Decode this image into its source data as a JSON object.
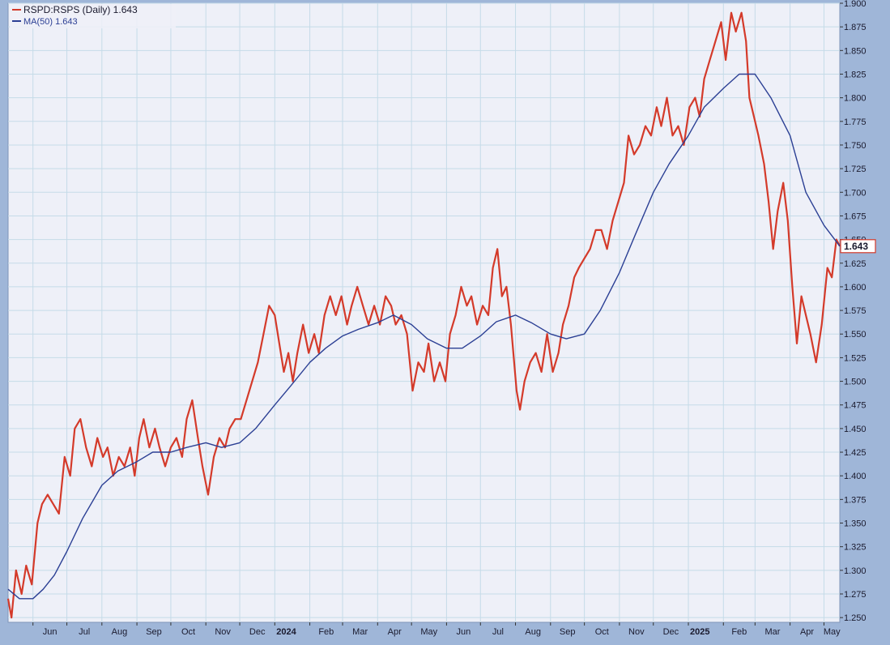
{
  "legend": {
    "main_label": "RSPD:RSPS (Daily) 1.643",
    "ma_label": "MA(50) 1.643"
  },
  "last_value_tag": "1.643",
  "colors": {
    "price_line": "#d43a2a",
    "ma_line": "#2b3f94",
    "plot_background": "#eef0f8",
    "grid": "#c5dbe8",
    "frame": "#9fb6d8",
    "axis_text": "#1a1a2e"
  },
  "chart_data": {
    "type": "line",
    "title": "",
    "xlabel": "",
    "ylabel": "",
    "ylim": [
      1.245,
      1.9
    ],
    "grid": true,
    "legend_position": "top-left",
    "y_axis_side": "right",
    "y_ticks": [
      "1.250",
      "1.275",
      "1.300",
      "1.325",
      "1.350",
      "1.375",
      "1.400",
      "1.425",
      "1.450",
      "1.475",
      "1.500",
      "1.525",
      "1.550",
      "1.575",
      "1.600",
      "1.625",
      "1.650",
      "1.675",
      "1.700",
      "1.725",
      "1.750",
      "1.775",
      "1.800",
      "1.825",
      "1.850",
      "1.875",
      "1.900"
    ],
    "x_tick_labels": [
      "Jun",
      "Jul",
      "Aug",
      "Sep",
      "Oct",
      "Nov",
      "Dec",
      "2024",
      "Feb",
      "Mar",
      "Apr",
      "May",
      "Jun",
      "Jul",
      "Aug",
      "Sep",
      "Oct",
      "Nov",
      "Dec",
      "2025",
      "Feb",
      "Mar",
      "Apr",
      "May"
    ],
    "x_tick_dates": [
      "2023-06-01",
      "2023-07-01",
      "2023-08-01",
      "2023-09-01",
      "2023-10-01",
      "2023-11-01",
      "2023-12-01",
      "2024-01-01",
      "2024-02-01",
      "2024-03-01",
      "2024-04-01",
      "2024-05-01",
      "2024-06-01",
      "2024-07-01",
      "2024-08-01",
      "2024-09-01",
      "2024-10-01",
      "2024-11-01",
      "2024-12-01",
      "2025-01-01",
      "2025-02-01",
      "2025-03-01",
      "2025-04-01",
      "2025-05-01"
    ],
    "bold_tick_labels": [
      "2024",
      "2025"
    ],
    "x_range": [
      "2023-05-10",
      "2025-05-15"
    ],
    "series": [
      {
        "name": "RSPD:RSPS (Daily)",
        "key": "price",
        "points": [
          [
            "2023-05-10",
            1.27
          ],
          [
            "2023-05-13",
            1.25
          ],
          [
            "2023-05-17",
            1.3
          ],
          [
            "2023-05-22",
            1.275
          ],
          [
            "2023-05-26",
            1.305
          ],
          [
            "2023-05-31",
            1.285
          ],
          [
            "2023-06-05",
            1.35
          ],
          [
            "2023-06-09",
            1.37
          ],
          [
            "2023-06-14",
            1.38
          ],
          [
            "2023-06-19",
            1.37
          ],
          [
            "2023-06-24",
            1.36
          ],
          [
            "2023-06-29",
            1.42
          ],
          [
            "2023-07-04",
            1.4
          ],
          [
            "2023-07-08",
            1.45
          ],
          [
            "2023-07-13",
            1.46
          ],
          [
            "2023-07-18",
            1.43
          ],
          [
            "2023-07-23",
            1.41
          ],
          [
            "2023-07-28",
            1.44
          ],
          [
            "2023-08-02",
            1.42
          ],
          [
            "2023-08-06",
            1.43
          ],
          [
            "2023-08-11",
            1.4
          ],
          [
            "2023-08-16",
            1.42
          ],
          [
            "2023-08-21",
            1.41
          ],
          [
            "2023-08-26",
            1.43
          ],
          [
            "2023-08-30",
            1.4
          ],
          [
            "2023-09-03",
            1.44
          ],
          [
            "2023-09-07",
            1.46
          ],
          [
            "2023-09-12",
            1.43
          ],
          [
            "2023-09-17",
            1.45
          ],
          [
            "2023-09-21",
            1.43
          ],
          [
            "2023-09-26",
            1.41
          ],
          [
            "2023-10-01",
            1.43
          ],
          [
            "2023-10-06",
            1.44
          ],
          [
            "2023-10-11",
            1.42
          ],
          [
            "2023-10-15",
            1.46
          ],
          [
            "2023-10-20",
            1.48
          ],
          [
            "2023-10-25",
            1.44
          ],
          [
            "2023-10-29",
            1.41
          ],
          [
            "2023-11-03",
            1.38
          ],
          [
            "2023-11-08",
            1.42
          ],
          [
            "2023-11-13",
            1.44
          ],
          [
            "2023-11-18",
            1.43
          ],
          [
            "2023-11-22",
            1.45
          ],
          [
            "2023-11-27",
            1.46
          ],
          [
            "2023-12-02",
            1.46
          ],
          [
            "2023-12-07",
            1.48
          ],
          [
            "2023-12-12",
            1.5
          ],
          [
            "2023-12-17",
            1.52
          ],
          [
            "2023-12-22",
            1.55
          ],
          [
            "2023-12-27",
            1.58
          ],
          [
            "2024-01-01",
            1.57
          ],
          [
            "2024-01-05",
            1.54
          ],
          [
            "2024-01-09",
            1.51
          ],
          [
            "2024-01-13",
            1.53
          ],
          [
            "2024-01-17",
            1.5
          ],
          [
            "2024-01-21",
            1.53
          ],
          [
            "2024-01-26",
            1.56
          ],
          [
            "2024-01-31",
            1.53
          ],
          [
            "2024-02-05",
            1.55
          ],
          [
            "2024-02-09",
            1.53
          ],
          [
            "2024-02-14",
            1.57
          ],
          [
            "2024-02-19",
            1.59
          ],
          [
            "2024-02-24",
            1.57
          ],
          [
            "2024-02-29",
            1.59
          ],
          [
            "2024-03-05",
            1.56
          ],
          [
            "2024-03-09",
            1.58
          ],
          [
            "2024-03-14",
            1.6
          ],
          [
            "2024-03-19",
            1.58
          ],
          [
            "2024-03-24",
            1.56
          ],
          [
            "2024-03-29",
            1.58
          ],
          [
            "2024-04-03",
            1.56
          ],
          [
            "2024-04-08",
            1.59
          ],
          [
            "2024-04-13",
            1.58
          ],
          [
            "2024-04-17",
            1.56
          ],
          [
            "2024-04-22",
            1.57
          ],
          [
            "2024-04-27",
            1.55
          ],
          [
            "2024-05-02",
            1.49
          ],
          [
            "2024-05-07",
            1.52
          ],
          [
            "2024-05-12",
            1.51
          ],
          [
            "2024-05-16",
            1.54
          ],
          [
            "2024-05-21",
            1.5
          ],
          [
            "2024-05-26",
            1.52
          ],
          [
            "2024-05-31",
            1.5
          ],
          [
            "2024-06-04",
            1.55
          ],
          [
            "2024-06-09",
            1.57
          ],
          [
            "2024-06-14",
            1.6
          ],
          [
            "2024-06-19",
            1.58
          ],
          [
            "2024-06-23",
            1.59
          ],
          [
            "2024-06-28",
            1.56
          ],
          [
            "2024-07-03",
            1.58
          ],
          [
            "2024-07-08",
            1.57
          ],
          [
            "2024-07-12",
            1.62
          ],
          [
            "2024-07-16",
            1.64
          ],
          [
            "2024-07-20",
            1.59
          ],
          [
            "2024-07-24",
            1.6
          ],
          [
            "2024-07-28",
            1.56
          ],
          [
            "2024-08-02",
            1.49
          ],
          [
            "2024-08-05",
            1.47
          ],
          [
            "2024-08-09",
            1.5
          ],
          [
            "2024-08-14",
            1.52
          ],
          [
            "2024-08-19",
            1.53
          ],
          [
            "2024-08-24",
            1.51
          ],
          [
            "2024-08-29",
            1.55
          ],
          [
            "2024-09-03",
            1.51
          ],
          [
            "2024-09-08",
            1.53
          ],
          [
            "2024-09-12",
            1.56
          ],
          [
            "2024-09-17",
            1.58
          ],
          [
            "2024-09-22",
            1.61
          ],
          [
            "2024-09-26",
            1.62
          ],
          [
            "2024-10-01",
            1.63
          ],
          [
            "2024-10-06",
            1.64
          ],
          [
            "2024-10-11",
            1.66
          ],
          [
            "2024-10-16",
            1.66
          ],
          [
            "2024-10-21",
            1.64
          ],
          [
            "2024-10-26",
            1.67
          ],
          [
            "2024-10-31",
            1.69
          ],
          [
            "2024-11-05",
            1.71
          ],
          [
            "2024-11-09",
            1.76
          ],
          [
            "2024-11-14",
            1.74
          ],
          [
            "2024-11-19",
            1.75
          ],
          [
            "2024-11-24",
            1.77
          ],
          [
            "2024-11-29",
            1.76
          ],
          [
            "2024-12-04",
            1.79
          ],
          [
            "2024-12-08",
            1.77
          ],
          [
            "2024-12-13",
            1.8
          ],
          [
            "2024-12-18",
            1.76
          ],
          [
            "2024-12-23",
            1.77
          ],
          [
            "2024-12-28",
            1.75
          ],
          [
            "2025-01-02",
            1.79
          ],
          [
            "2025-01-07",
            1.8
          ],
          [
            "2025-01-11",
            1.78
          ],
          [
            "2025-01-15",
            1.82
          ],
          [
            "2025-01-20",
            1.84
          ],
          [
            "2025-01-25",
            1.86
          ],
          [
            "2025-01-30",
            1.88
          ],
          [
            "2025-02-03",
            1.84
          ],
          [
            "2025-02-08",
            1.89
          ],
          [
            "2025-02-12",
            1.87
          ],
          [
            "2025-02-17",
            1.89
          ],
          [
            "2025-02-21",
            1.86
          ],
          [
            "2025-02-24",
            1.8
          ],
          [
            "2025-02-28",
            1.78
          ],
          [
            "2025-03-04",
            1.76
          ],
          [
            "2025-03-09",
            1.73
          ],
          [
            "2025-03-13",
            1.69
          ],
          [
            "2025-03-17",
            1.64
          ],
          [
            "2025-03-21",
            1.68
          ],
          [
            "2025-03-26",
            1.71
          ],
          [
            "2025-03-30",
            1.67
          ],
          [
            "2025-04-03",
            1.6
          ],
          [
            "2025-04-07",
            1.54
          ],
          [
            "2025-04-11",
            1.59
          ],
          [
            "2025-04-15",
            1.57
          ],
          [
            "2025-04-19",
            1.55
          ],
          [
            "2025-04-24",
            1.52
          ],
          [
            "2025-04-29",
            1.56
          ],
          [
            "2025-05-04",
            1.62
          ],
          [
            "2025-05-08",
            1.61
          ],
          [
            "2025-05-12",
            1.65
          ],
          [
            "2025-05-15",
            1.643
          ]
        ]
      },
      {
        "name": "MA(50)",
        "key": "ma",
        "points": [
          [
            "2023-05-10",
            1.28
          ],
          [
            "2023-05-20",
            1.27
          ],
          [
            "2023-06-01",
            1.27
          ],
          [
            "2023-06-10",
            1.28
          ],
          [
            "2023-06-20",
            1.295
          ],
          [
            "2023-07-01",
            1.32
          ],
          [
            "2023-07-15",
            1.355
          ],
          [
            "2023-08-01",
            1.39
          ],
          [
            "2023-08-15",
            1.405
          ],
          [
            "2023-09-01",
            1.415
          ],
          [
            "2023-09-15",
            1.425
          ],
          [
            "2023-10-01",
            1.425
          ],
          [
            "2023-10-15",
            1.43
          ],
          [
            "2023-11-01",
            1.435
          ],
          [
            "2023-11-15",
            1.43
          ],
          [
            "2023-12-01",
            1.435
          ],
          [
            "2023-12-15",
            1.45
          ],
          [
            "2024-01-01",
            1.475
          ],
          [
            "2024-01-15",
            1.495
          ],
          [
            "2024-02-01",
            1.52
          ],
          [
            "2024-02-15",
            1.535
          ],
          [
            "2024-03-01",
            1.548
          ],
          [
            "2024-03-15",
            1.555
          ],
          [
            "2024-04-01",
            1.562
          ],
          [
            "2024-04-15",
            1.57
          ],
          [
            "2024-05-01",
            1.56
          ],
          [
            "2024-05-15",
            1.545
          ],
          [
            "2024-06-01",
            1.535
          ],
          [
            "2024-06-15",
            1.535
          ],
          [
            "2024-07-01",
            1.548
          ],
          [
            "2024-07-15",
            1.563
          ],
          [
            "2024-08-01",
            1.57
          ],
          [
            "2024-08-15",
            1.562
          ],
          [
            "2024-09-01",
            1.55
          ],
          [
            "2024-09-15",
            1.545
          ],
          [
            "2024-10-01",
            1.55
          ],
          [
            "2024-10-15",
            1.575
          ],
          [
            "2024-11-01",
            1.615
          ],
          [
            "2024-11-15",
            1.655
          ],
          [
            "2024-12-01",
            1.7
          ],
          [
            "2024-12-15",
            1.73
          ],
          [
            "2025-01-01",
            1.76
          ],
          [
            "2025-01-15",
            1.79
          ],
          [
            "2025-02-01",
            1.81
          ],
          [
            "2025-02-15",
            1.825
          ],
          [
            "2025-03-01",
            1.825
          ],
          [
            "2025-03-15",
            1.8
          ],
          [
            "2025-04-01",
            1.76
          ],
          [
            "2025-04-15",
            1.7
          ],
          [
            "2025-05-01",
            1.665
          ],
          [
            "2025-05-15",
            1.643
          ]
        ]
      }
    ]
  }
}
